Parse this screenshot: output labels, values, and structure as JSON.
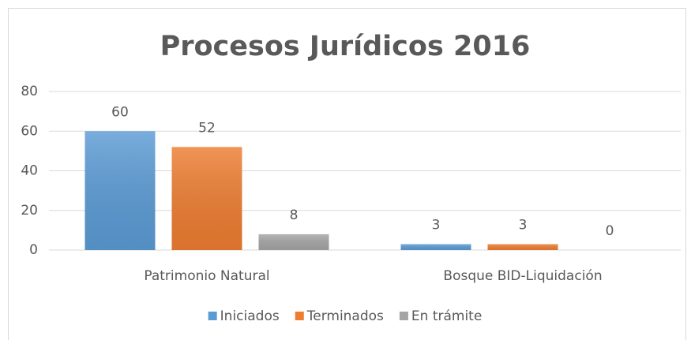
{
  "chart_data": {
    "type": "bar",
    "title": "Procesos Jurídicos 2016",
    "categories": [
      "Patrimonio Natural",
      "Bosque BID-Liquidación"
    ],
    "series": [
      {
        "name": "Iniciados",
        "color": "#5b9bd5",
        "values": [
          60,
          3
        ]
      },
      {
        "name": "Terminados",
        "color": "#ed7d31",
        "values": [
          52,
          3
        ]
      },
      {
        "name": "En trámite",
        "color": "#a5a5a5",
        "values": [
          8,
          0
        ]
      }
    ],
    "ylim": [
      0,
      80
    ],
    "yticks": [
      0,
      20,
      40,
      60,
      80
    ],
    "grid": true,
    "legend": "bottom"
  }
}
